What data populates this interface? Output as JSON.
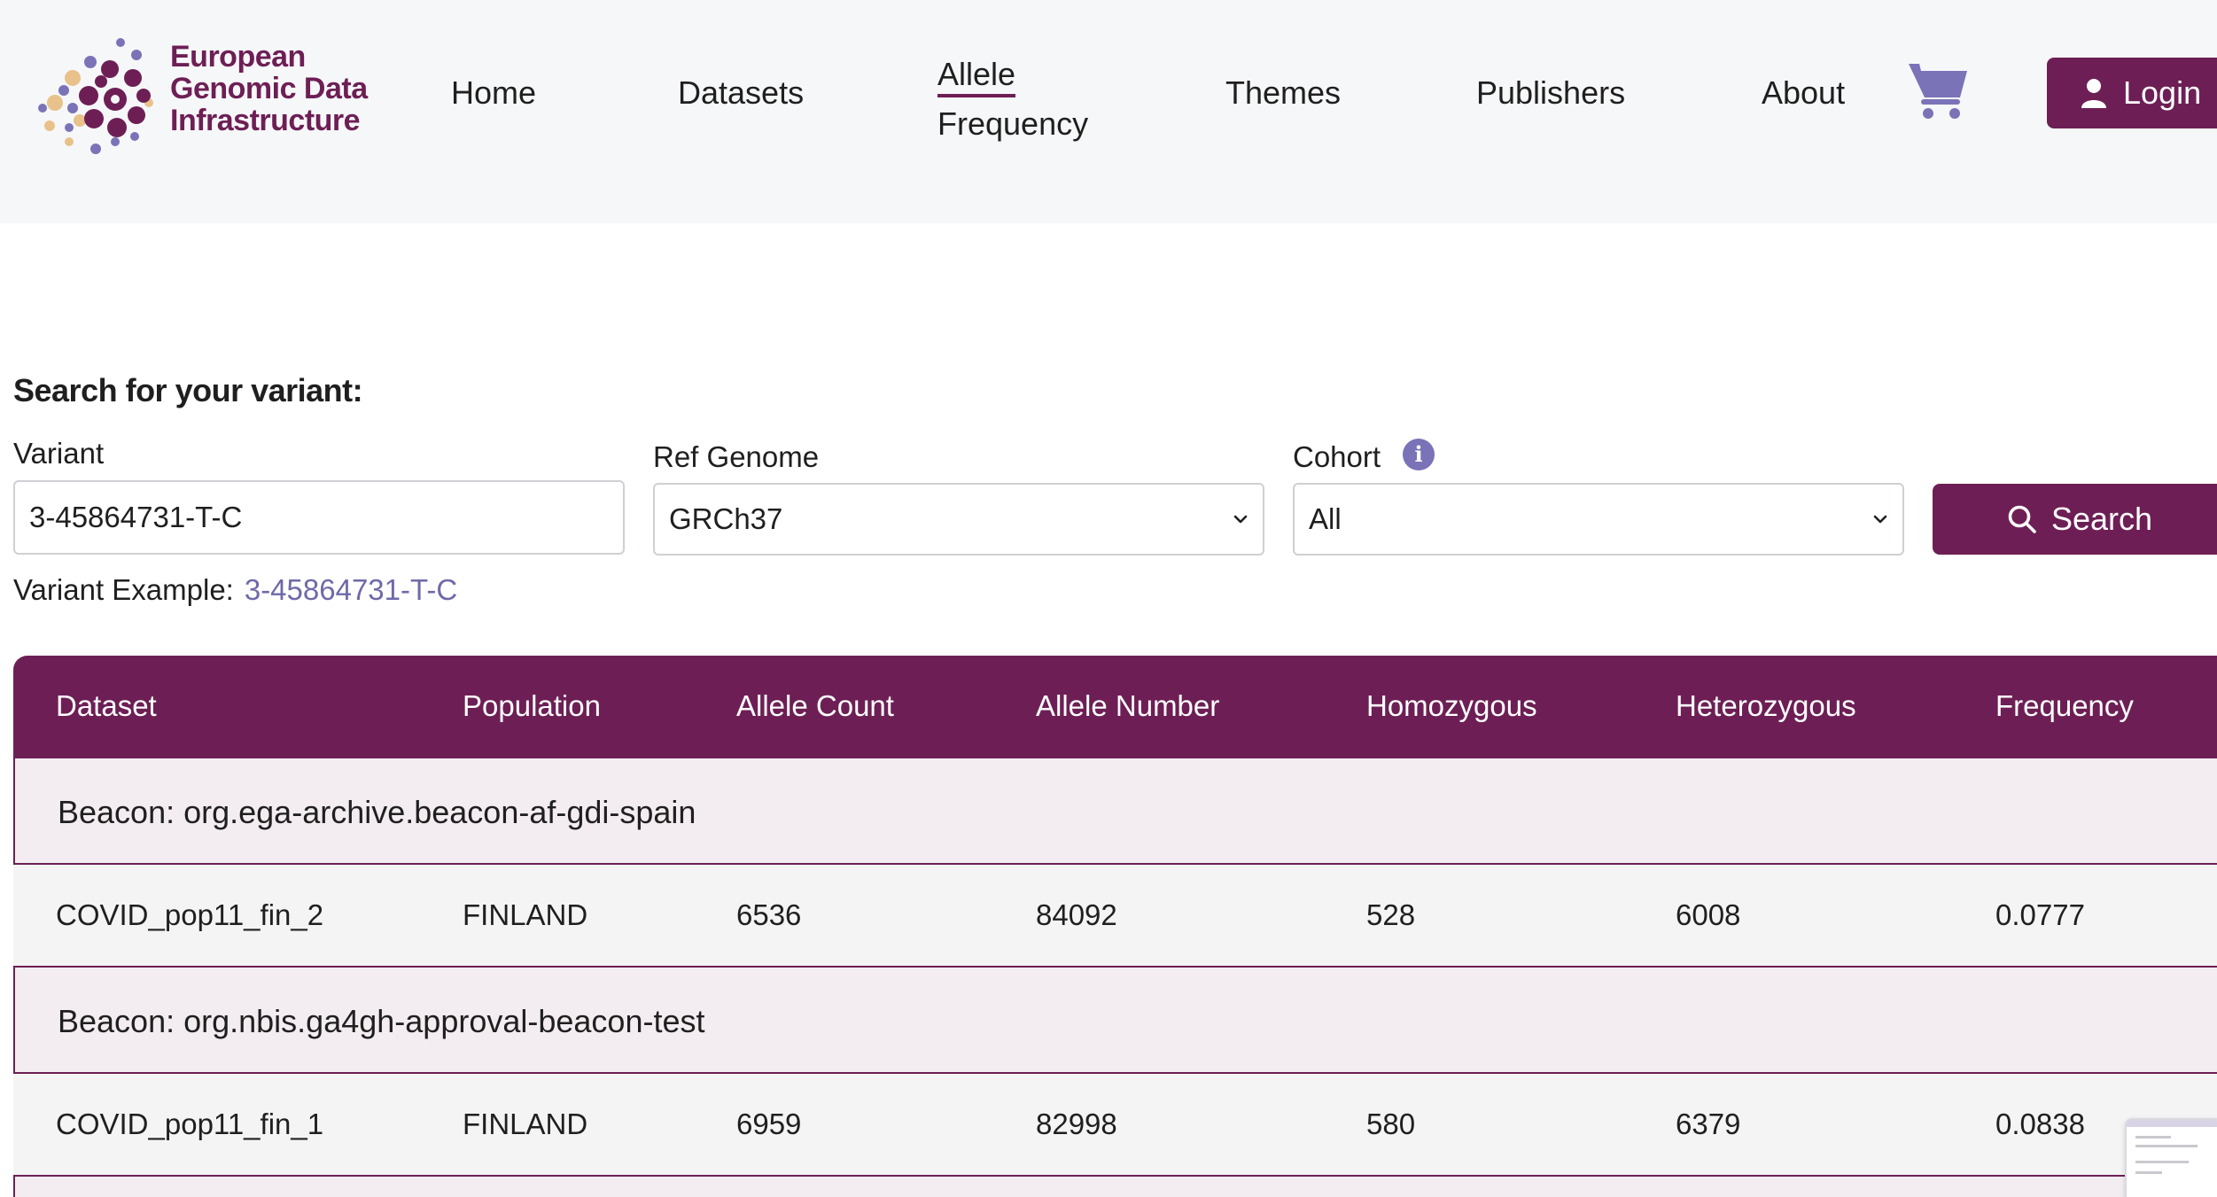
{
  "brand": {
    "line1": "European",
    "line2": "Genomic Data",
    "line3": "Infrastructure",
    "color": "#6d1f55"
  },
  "nav": {
    "home": "Home",
    "datasets": "Datasets",
    "allele_line1": "Allele",
    "allele_line2": "Frequency",
    "themes": "Themes",
    "publishers": "Publishers",
    "about": "About",
    "cart_icon": "shopping-cart-icon",
    "login": "Login"
  },
  "search": {
    "title": "Search for your variant:",
    "variant_label": "Variant",
    "variant_value": "3-45864731-T-C",
    "ref_label": "Ref Genome",
    "ref_value": "GRCh37",
    "cohort_label": "Cohort",
    "cohort_value": "All",
    "button": "Search",
    "example_label": "Variant Example:",
    "example_value": "3-45864731-T-C"
  },
  "table": {
    "headers": [
      "Dataset",
      "Population",
      "Allele Count",
      "Allele Number",
      "Homozygous",
      "Heterozygous",
      "Frequency"
    ],
    "groups": [
      {
        "title": "Beacon: org.ega-archive.beacon-af-gdi-spain",
        "row": [
          "COVID_pop11_fin_2",
          "FINLAND",
          "6536",
          "84092",
          "528",
          "6008",
          "0.0777"
        ]
      },
      {
        "title": "Beacon: org.nbis.ga4gh-approval-beacon-test",
        "row": [
          "COVID_pop11_fin_1",
          "FINLAND",
          "6959",
          "82998",
          "580",
          "6379",
          "0.0838"
        ]
      }
    ]
  },
  "colors": {
    "primary": "#6d1f55",
    "accent": "#7a73b8",
    "link": "#6e6aa8",
    "header_bg": "#f6f7f9",
    "group_bg": "#f3edf1",
    "row_bg": "#f4f4f5"
  }
}
